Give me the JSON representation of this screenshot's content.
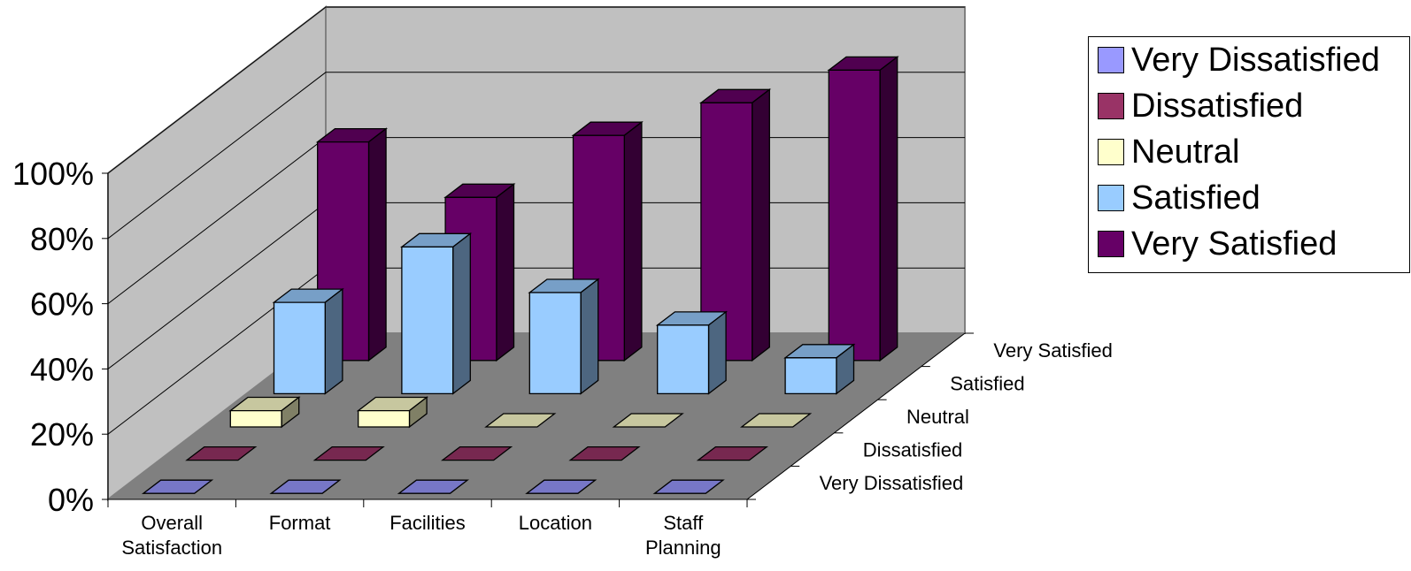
{
  "chart_data": {
    "type": "bar",
    "categories": [
      "Overall Satisfaction",
      "Format",
      "Facilities",
      "Location",
      "Staff Planning"
    ],
    "series": [
      {
        "name": "Very Dissatisfied",
        "values": [
          0,
          0,
          0,
          0,
          0
        ],
        "color": "#9999ff"
      },
      {
        "name": "Dissatisfied",
        "values": [
          0,
          0,
          0,
          0,
          0
        ],
        "color": "#993366"
      },
      {
        "name": "Neutral",
        "values": [
          5,
          5,
          0,
          0,
          0
        ],
        "color": "#ffffcc"
      },
      {
        "name": "Satisfied",
        "values": [
          28,
          45,
          31,
          21,
          11
        ],
        "color": "#99ccff"
      },
      {
        "name": "Very Satisfied",
        "values": [
          67,
          50,
          69,
          79,
          89
        ],
        "color": "#660066"
      }
    ],
    "y_ticks": [
      "0%",
      "20%",
      "40%",
      "60%",
      "80%",
      "100%"
    ],
    "ylim": [
      0,
      100
    ],
    "x_tick_labels": [
      [
        "Overall",
        "Satisfaction"
      ],
      [
        "Format"
      ],
      [
        "Facilities"
      ],
      [
        "Location"
      ],
      [
        "Staff",
        "Planning"
      ]
    ],
    "depth_labels": [
      "Very Dissatisfied",
      "Dissatisfied",
      "Neutral",
      "Satisfied",
      "Very Satisfied"
    ],
    "grid": true,
    "legend_position": "top-right",
    "wall_color": "#c0c0c0",
    "floor_color": "#808080"
  }
}
